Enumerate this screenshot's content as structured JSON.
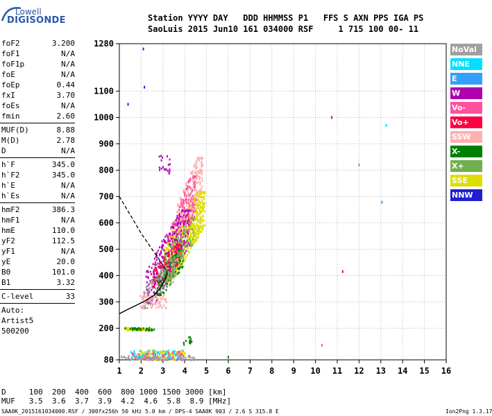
{
  "logo": {
    "brand": "Lowell",
    "product": "DIGISONDE",
    "brand_color": "#2a58a8"
  },
  "header": {
    "line1": "Station YYYY DAY   DDD HHMMSS P1   FFS S AXN PPS IGA PS",
    "line2": "SaoLuis 2015 Jun10 161 034000 RSF     1 715 100 00- 11"
  },
  "parameters": [
    {
      "label": "foF2",
      "value": "3.200"
    },
    {
      "label": "foF1",
      "value": "N/A"
    },
    {
      "label": "foF1p",
      "value": "N/A"
    },
    {
      "label": "foE",
      "value": "N/A"
    },
    {
      "label": "foEp",
      "value": "0.44"
    },
    {
      "label": "fxI",
      "value": "3.70"
    },
    {
      "label": "foEs",
      "value": "N/A"
    },
    {
      "label": "fmin",
      "value": "2.60"
    },
    {
      "label": "MUF(D)",
      "value": "8.88"
    },
    {
      "label": "M(D)",
      "value": "2.78"
    },
    {
      "label": "D",
      "value": "N/A"
    },
    {
      "label": "h`F",
      "value": "345.0"
    },
    {
      "label": "h`F2",
      "value": "345.0"
    },
    {
      "label": "h`E",
      "value": "N/A"
    },
    {
      "label": "h`Es",
      "value": "N/A"
    },
    {
      "label": "hmF2",
      "value": "386.3"
    },
    {
      "label": "hmF1",
      "value": "N/A"
    },
    {
      "label": "hmE",
      "value": "110.0"
    },
    {
      "label": "yF2",
      "value": "112.5"
    },
    {
      "label": "yF1",
      "value": "N/A"
    },
    {
      "label": "yE",
      "value": "20.0"
    },
    {
      "label": "B0",
      "value": "101.0"
    },
    {
      "label": "B1",
      "value": "3.32"
    },
    {
      "label": "C-level",
      "value": "33"
    },
    {
      "label": "Auto:",
      "value": ""
    },
    {
      "label": "Artist5",
      "value": ""
    },
    {
      "label": "500200",
      "value": ""
    }
  ],
  "legend": [
    {
      "label": "NoVal",
      "color": "#a0a0a0"
    },
    {
      "label": "NNE",
      "color": "#00e0ff"
    },
    {
      "label": "E",
      "color": "#33a0ff"
    },
    {
      "label": "W",
      "color": "#b000b0"
    },
    {
      "label": "Vo-",
      "color": "#ff50a0"
    },
    {
      "label": "Vo+",
      "color": "#ff0040"
    },
    {
      "label": "SSW",
      "color": "#ffb0b0"
    },
    {
      "label": "X-",
      "color": "#008000"
    },
    {
      "label": "X+",
      "color": "#70b050"
    },
    {
      "label": "SSE",
      "color": "#dddd00"
    },
    {
      "label": "NNW",
      "color": "#2020d0"
    }
  ],
  "chart_data": {
    "type": "scatter",
    "xlim": [
      1,
      16
    ],
    "ylim": [
      80,
      1280
    ],
    "x_ticks": [
      1,
      2,
      3,
      4,
      5,
      6,
      7,
      8,
      9,
      10,
      11,
      12,
      13,
      14,
      15,
      16
    ],
    "y_ticks": [
      80,
      200,
      300,
      400,
      500,
      600,
      700,
      800,
      900,
      1000,
      1100,
      1280
    ],
    "grid": true,
    "trace_curve": {
      "x": [
        1.0,
        1.4,
        1.8,
        2.2,
        2.6,
        2.9,
        3.1,
        3.2
      ],
      "y": [
        255,
        272,
        288,
        305,
        325,
        355,
        385,
        410
      ]
    },
    "profile_curve": {
      "x": [
        1.0,
        1.5,
        2.0,
        2.5,
        3.0,
        3.2
      ],
      "y": [
        700,
        630,
        560,
        500,
        440,
        410
      ]
    },
    "clusters": [
      {
        "color": "#dddd00",
        "x": [
          3.0,
          4.9
        ],
        "y": [
          380,
          720
        ],
        "n": 700
      },
      {
        "color": "#ffb0b0",
        "x": [
          3.6,
          4.8
        ],
        "y": [
          560,
          850
        ],
        "n": 260
      },
      {
        "color": "#ff50a0",
        "x": [
          3.2,
          4.5
        ],
        "y": [
          420,
          780
        ],
        "n": 220
      },
      {
        "color": "#b000b0",
        "x": [
          2.2,
          4.2
        ],
        "y": [
          300,
          650
        ],
        "n": 320
      },
      {
        "color": "#ff0040",
        "x": [
          2.5,
          3.8
        ],
        "y": [
          360,
          520
        ],
        "n": 140
      },
      {
        "color": "#008000",
        "x": [
          2.7,
          3.9
        ],
        "y": [
          330,
          500
        ],
        "n": 130
      },
      {
        "color": "#70b050",
        "x": [
          3.0,
          4.4
        ],
        "y": [
          380,
          620
        ],
        "n": 120
      },
      {
        "color": "#a0a0a0",
        "x": [
          2.0,
          3.6
        ],
        "y": [
          280,
          460
        ],
        "n": 110
      },
      {
        "color": "#b000b0",
        "x": [
          2.8,
          3.3
        ],
        "y": [
          790,
          860
        ],
        "n": 22
      },
      {
        "color": "#ffb0b0",
        "x": [
          1.9,
          3.2
        ],
        "y": [
          280,
          330
        ],
        "n": 70
      },
      {
        "color": "#dddd00",
        "x": [
          1.2,
          2.5
        ],
        "y": [
          195,
          205
        ],
        "n": 60
      },
      {
        "color": "#008000",
        "x": [
          1.2,
          2.6
        ],
        "y": [
          195,
          205
        ],
        "n": 30
      },
      {
        "color": "#dddd00",
        "x": [
          1.8,
          4.0
        ],
        "y": [
          82,
          120
        ],
        "n": 150
      },
      {
        "color": "#00e0ff",
        "x": [
          1.5,
          4.0
        ],
        "y": [
          82,
          120
        ],
        "n": 80
      },
      {
        "color": "#ff50a0",
        "x": [
          1.5,
          4.2
        ],
        "y": [
          82,
          115
        ],
        "n": 60
      },
      {
        "color": "#a0a0a0",
        "x": [
          1.0,
          4.5
        ],
        "y": [
          82,
          100
        ],
        "n": 60
      },
      {
        "color": "#008000",
        "x": [
          3.8,
          4.3
        ],
        "y": [
          140,
          170
        ],
        "n": 14
      }
    ],
    "isolated_points": [
      {
        "x": 2.1,
        "y": 1260,
        "color": "#2020d0"
      },
      {
        "x": 2.15,
        "y": 1115,
        "color": "#2020d0"
      },
      {
        "x": 1.4,
        "y": 1050,
        "color": "#2020d0"
      },
      {
        "x": 10.75,
        "y": 1000,
        "color": "#b000b0"
      },
      {
        "x": 13.25,
        "y": 970,
        "color": "#00e0ff"
      },
      {
        "x": 12.0,
        "y": 820,
        "color": "#70b050"
      },
      {
        "x": 13.05,
        "y": 678,
        "color": "#33a0ff"
      },
      {
        "x": 11.25,
        "y": 415,
        "color": "#ff0040"
      },
      {
        "x": 10.3,
        "y": 135,
        "color": "#ff50a0"
      },
      {
        "x": 6.0,
        "y": 90,
        "color": "#008000"
      }
    ]
  },
  "footer": {
    "d_row": "D     100  200  400  600  800 1000 1500 3000 [km]",
    "muf_row": "MUF   3.5  3.6  3.7  3.9  4.2  4.6  5.8  8.9 [MHz]",
    "source": "SAA0K_2015161034000.RSF / 300fx256h 50 kHz 5.0 km / DPS-4 SAA0K 903 / 2.6 S 315.8 E",
    "version": "Ion2Png 1.3.17"
  }
}
